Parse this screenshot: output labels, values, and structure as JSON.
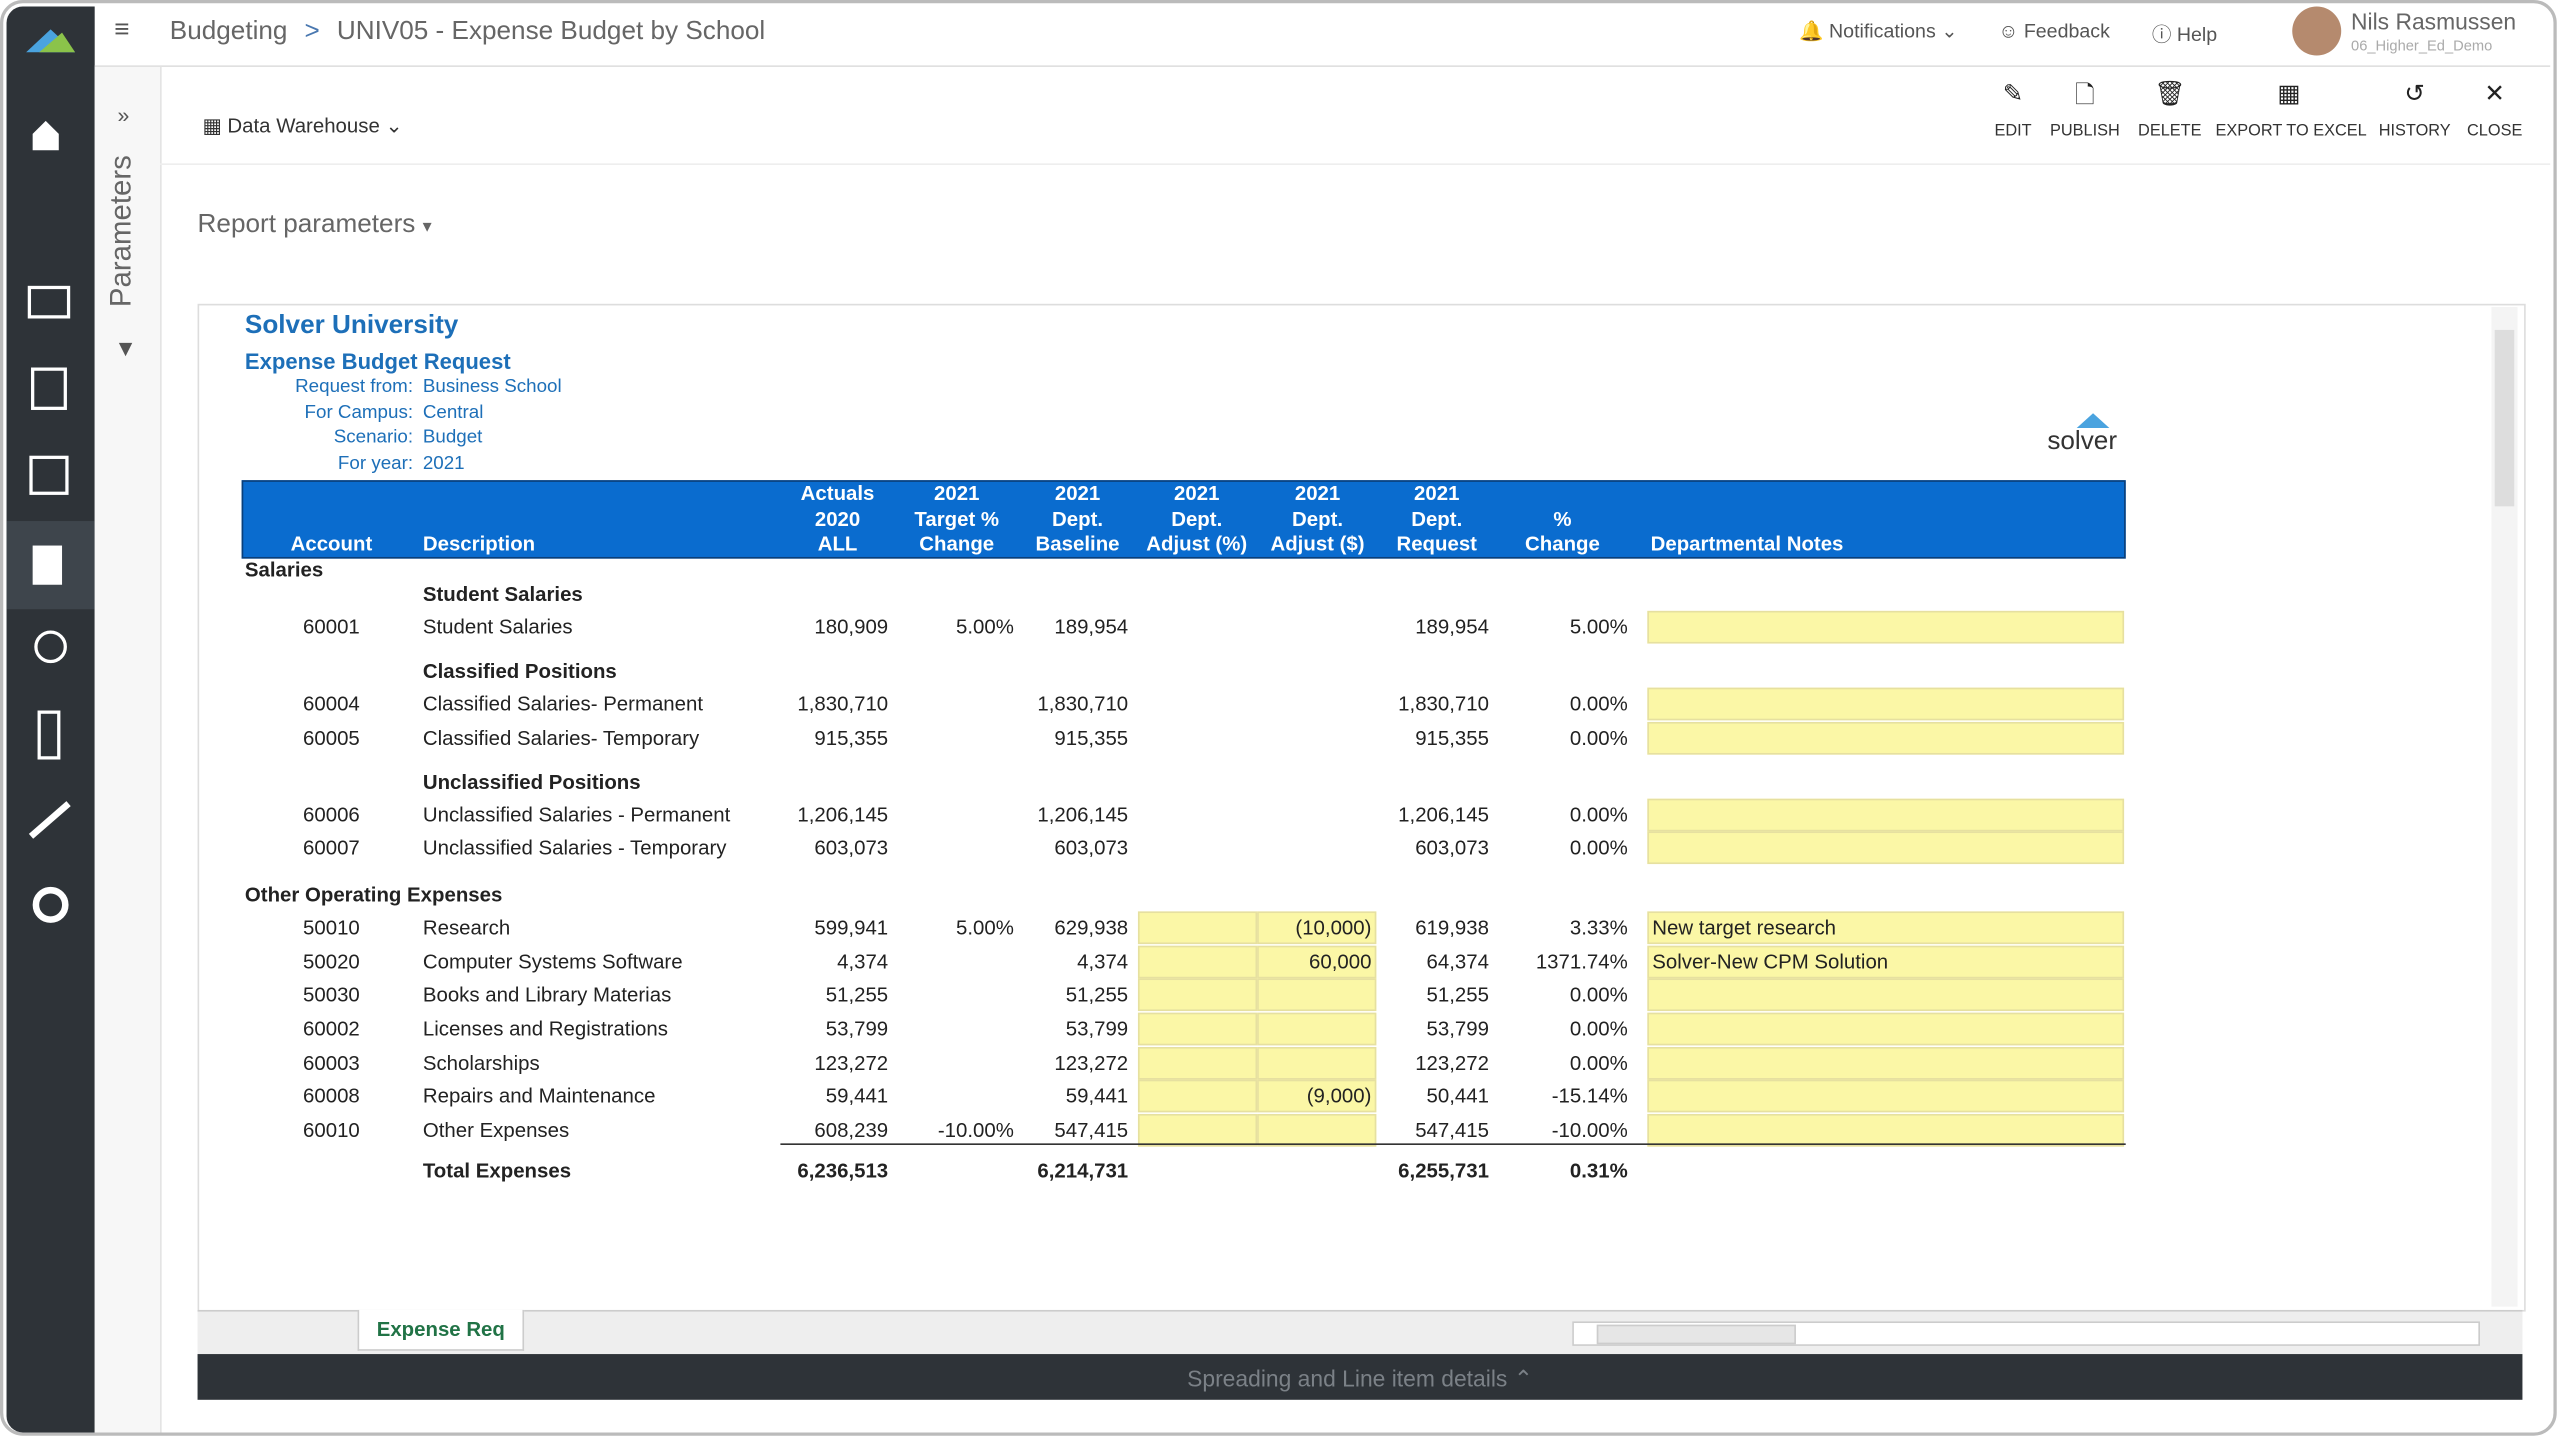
{
  "header": {
    "breadcrumb": [
      "Budgeting",
      ">",
      "UNIV05 - Expense Budget by School"
    ],
    "notifications": "Notifications",
    "feedback": "Feedback",
    "help": "Help",
    "user_name": "Nils Rasmussen",
    "user_role": "06_Higher_Ed_Demo"
  },
  "toolbar": {
    "source": "Data Warehouse",
    "buttons": [
      "EDIT",
      "PUBLISH",
      "DELETE",
      "EXPORT TO EXCEL",
      "HISTORY",
      "CLOSE"
    ]
  },
  "parameters_panel": "Parameters",
  "report_parameters": "Report parameters",
  "report": {
    "title": "Solver University",
    "subtitle": "Expense Budget Request",
    "logo": "solver",
    "params": [
      [
        "Request from:",
        "Business School"
      ],
      [
        "For Campus:",
        "Central"
      ],
      [
        "Scenario:",
        "Budget"
      ],
      [
        "For year:",
        "2021"
      ]
    ],
    "columns": [
      [
        "Account"
      ],
      [
        "Description"
      ],
      [
        "Actuals",
        "2020",
        "ALL"
      ],
      [
        "2021",
        "Target %",
        "Change"
      ],
      [
        "2021",
        "Dept.",
        "Baseline"
      ],
      [
        "2021",
        "Dept.",
        "Adjust (%)"
      ],
      [
        "2021",
        "Dept.",
        "Adjust ($)"
      ],
      [
        "2021",
        "Dept.",
        "Request"
      ],
      [
        "%",
        "Change"
      ],
      [
        "Departmental Notes"
      ]
    ],
    "sections": [
      {
        "label": "Salaries",
        "groups": [
          {
            "label": "Student Salaries",
            "rows": [
              [
                "60001",
                "Student Salaries",
                "180,909",
                "5.00%",
                "189,954",
                null,
                null,
                "189,954",
                "5.00%",
                null
              ]
            ]
          },
          {
            "label": "Classified Positions",
            "rows": [
              [
                "60004",
                "Classified Salaries- Permanent",
                "1,830,710",
                null,
                "1,830,710",
                null,
                null,
                "1,830,710",
                "0.00%",
                null
              ],
              [
                "60005",
                "Classified Salaries- Temporary",
                "915,355",
                null,
                "915,355",
                null,
                null,
                "915,355",
                "0.00%",
                null
              ]
            ]
          },
          {
            "label": "Unclassified Positions",
            "rows": [
              [
                "60006",
                "Unclassified Salaries - Permanent",
                "1,206,145",
                null,
                "1,206,145",
                null,
                null,
                "1,206,145",
                "0.00%",
                null
              ],
              [
                "60007",
                "Unclassified Salaries - Temporary",
                "603,073",
                null,
                "603,073",
                null,
                null,
                "603,073",
                "0.00%",
                null
              ]
            ]
          }
        ]
      },
      {
        "label": "Other Operating Expenses",
        "groups": [
          {
            "label": null,
            "rows": [
              [
                "50010",
                "Research",
                "599,941",
                "5.00%",
                "629,938",
                null,
                "(10,000)",
                "619,938",
                "3.33%",
                "New target research"
              ],
              [
                "50020",
                "Computer Systems Software",
                "4,374",
                null,
                "4,374",
                null,
                "60,000",
                "64,374",
                "1371.74%",
                "Solver-New CPM Solution"
              ],
              [
                "50030",
                "Books and Library Materias",
                "51,255",
                null,
                "51,255",
                null,
                null,
                "51,255",
                "0.00%",
                null
              ],
              [
                "60002",
                "Licenses and Registrations",
                "53,799",
                null,
                "53,799",
                null,
                null,
                "53,799",
                "0.00%",
                null
              ],
              [
                "60003",
                "Scholarships",
                "123,272",
                null,
                "123,272",
                null,
                null,
                "123,272",
                "0.00%",
                null
              ],
              [
                "60008",
                "Repairs and Maintenance",
                "59,441",
                null,
                "59,441",
                null,
                "(9,000)",
                "50,441",
                "-15.14%",
                null
              ],
              [
                "60010",
                "Other Expenses",
                "608,239",
                "-10.00%",
                "547,415",
                null,
                null,
                "547,415",
                "-10.00%",
                null
              ]
            ]
          }
        ]
      }
    ],
    "total": [
      null,
      "Total Expenses",
      "6,236,513",
      null,
      "6,214,731",
      null,
      null,
      "6,255,731",
      "0.31%",
      null
    ]
  },
  "footer": {
    "tab": "Expense Req",
    "details_bar": "Spreading and Line item details"
  }
}
